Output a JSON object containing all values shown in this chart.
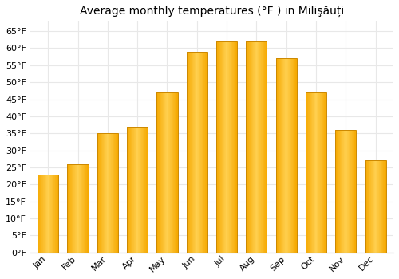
{
  "title": "Average monthly temperatures (°F ) in Milişăuți",
  "months": [
    "Jan",
    "Feb",
    "Mar",
    "Apr",
    "May",
    "Jun",
    "Jul",
    "Aug",
    "Sep",
    "Oct",
    "Nov",
    "Dec"
  ],
  "values": [
    23,
    26,
    35,
    37,
    47,
    59,
    62,
    62,
    57,
    47,
    36,
    27
  ],
  "bar_color_dark": "#F5A800",
  "bar_color_light": "#FFD050",
  "bar_edge_color": "#B8860B",
  "ylim": [
    0,
    68
  ],
  "yticks": [
    0,
    5,
    10,
    15,
    20,
    25,
    30,
    35,
    40,
    45,
    50,
    55,
    60,
    65
  ],
  "ytick_labels": [
    "0°F",
    "5°F",
    "10°F",
    "15°F",
    "20°F",
    "25°F",
    "30°F",
    "35°F",
    "40°F",
    "45°F",
    "50°F",
    "55°F",
    "60°F",
    "65°F"
  ],
  "background_color": "#FFFFFF",
  "grid_color": "#E8E8E8",
  "title_fontsize": 10,
  "tick_fontsize": 8,
  "bar_width": 0.7
}
